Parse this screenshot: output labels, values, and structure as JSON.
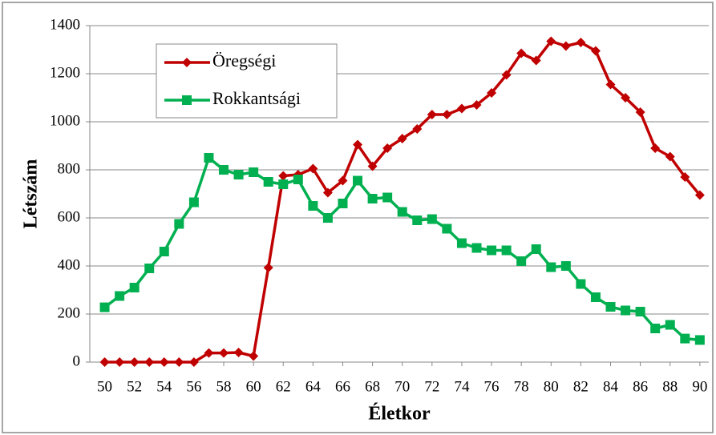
{
  "chart_data": {
    "type": "line",
    "x_label": "Életkor",
    "y_label": "Létszám",
    "x": [
      50,
      51,
      52,
      53,
      54,
      55,
      56,
      57,
      58,
      59,
      60,
      61,
      62,
      63,
      64,
      65,
      66,
      67,
      68,
      69,
      70,
      71,
      72,
      73,
      74,
      75,
      76,
      77,
      78,
      79,
      80,
      81,
      82,
      83,
      84,
      85,
      86,
      87,
      88,
      89,
      90
    ],
    "series": [
      {
        "name": "Öregségi",
        "color": "#c00000",
        "marker": "diamond",
        "values": [
          0,
          0,
          0,
          0,
          0,
          0,
          0,
          38,
          38,
          40,
          25,
          393,
          775,
          780,
          805,
          705,
          755,
          905,
          815,
          890,
          930,
          970,
          1030,
          1030,
          1055,
          1070,
          1120,
          1195,
          1285,
          1255,
          1335,
          1315,
          1330,
          1295,
          1155,
          1100,
          1040,
          890,
          855,
          770,
          695
        ]
      },
      {
        "name": "Rokkantsági",
        "color": "#00b050",
        "marker": "square",
        "values": [
          228,
          275,
          310,
          390,
          460,
          575,
          665,
          850,
          800,
          780,
          790,
          750,
          740,
          760,
          650,
          600,
          660,
          755,
          680,
          685,
          625,
          590,
          595,
          555,
          495,
          475,
          465,
          465,
          420,
          470,
          395,
          400,
          325,
          270,
          230,
          215,
          210,
          140,
          155,
          98,
          92
        ]
      }
    ],
    "xlim": [
      49,
      90.6
    ],
    "ylim": [
      0,
      1400
    ],
    "xticks": [
      50,
      52,
      54,
      56,
      58,
      60,
      62,
      64,
      66,
      68,
      70,
      72,
      74,
      76,
      78,
      80,
      82,
      84,
      86,
      88,
      90
    ],
    "yticks": [
      0,
      200,
      400,
      600,
      800,
      1000,
      1200,
      1400
    ],
    "grid": true,
    "legend": "upper left"
  }
}
